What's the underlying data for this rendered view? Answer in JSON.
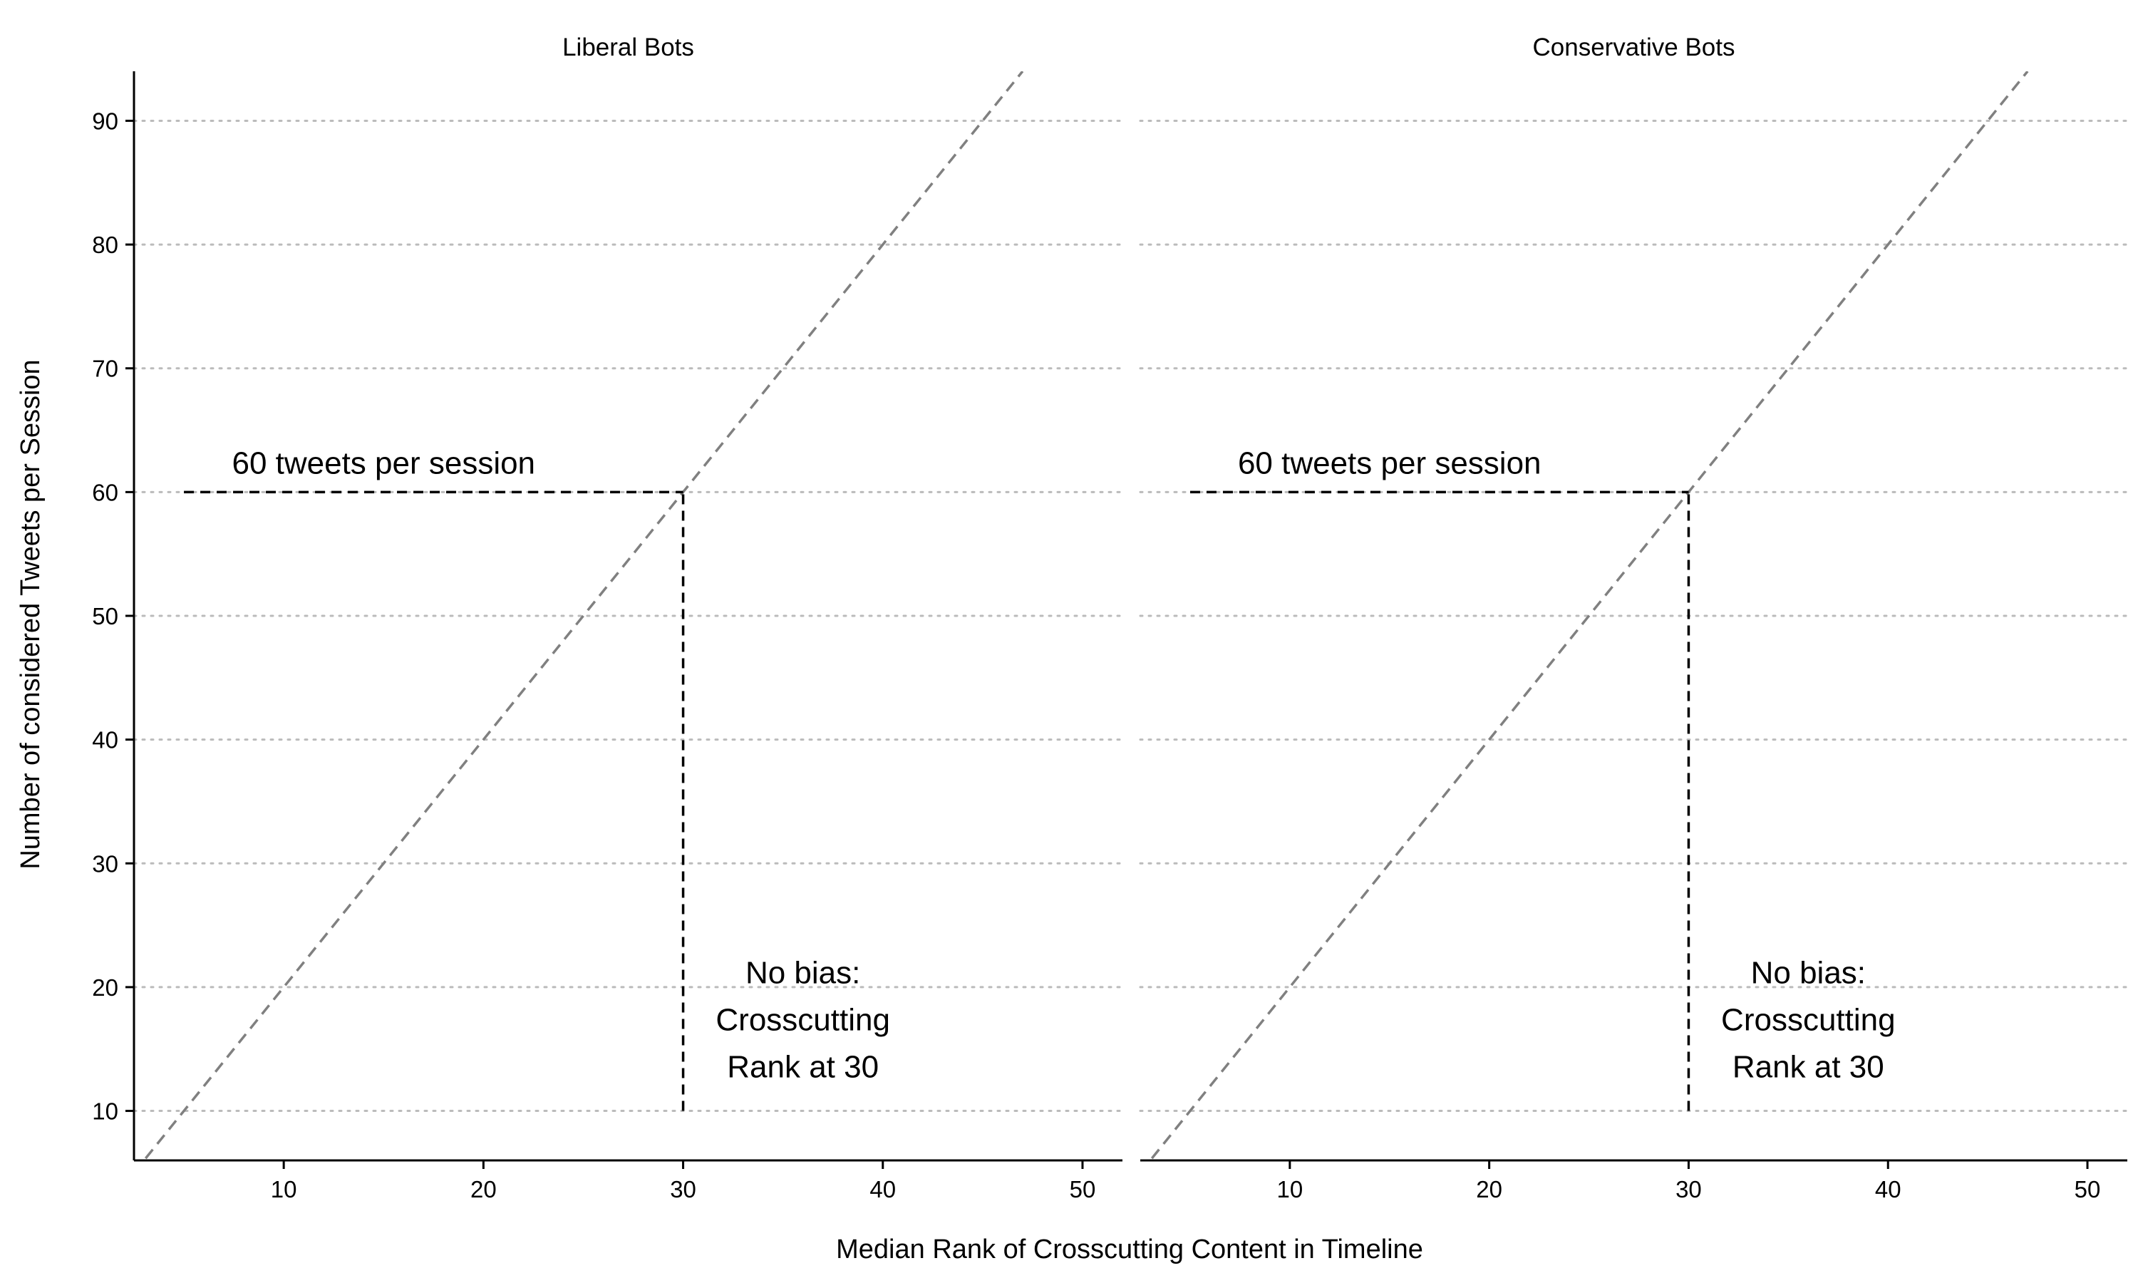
{
  "chart_data": {
    "type": "line",
    "facet_layout": "1 row x 2 columns, shared axes",
    "xlabel": "Median Rank of Crosscutting Content in Timeline",
    "ylabel": "Number of considered Tweets per Session",
    "xlim": [
      2.5,
      52
    ],
    "ylim": [
      6,
      94
    ],
    "xticks": [
      10,
      20,
      30,
      40,
      50
    ],
    "yticks": [
      10,
      20,
      30,
      40,
      50,
      60,
      70,
      80,
      90
    ],
    "grid": "horizontal dotted gridlines at y ticks",
    "legend": "none",
    "colors": {
      "reference_line": "#808080",
      "guide_lines": "#000000",
      "grid": "#bbbbbb",
      "axis": "#000000"
    },
    "panels": [
      {
        "title": "Liberal Bots",
        "series": [
          {
            "style": "dashed-gray",
            "x": [
              2.5,
              47
            ],
            "y": [
              5,
              94
            ]
          }
        ],
        "guides": {
          "horizontal": {
            "y": 60,
            "x_from": 5,
            "x_to": 30,
            "label": "60 tweets per session",
            "label_x": 15,
            "label_y": 61.5
          },
          "vertical": {
            "x": 30,
            "y_from": 10,
            "y_to": 60
          }
        },
        "annotation": {
          "lines": [
            "No bias:",
            "Crosscutting",
            "Rank at 30"
          ],
          "x": 36,
          "y": 16.5
        }
      },
      {
        "title": "Conservative Bots",
        "series": [
          {
            "style": "dashed-gray",
            "x": [
              2.5,
              47
            ],
            "y": [
              5,
              94
            ]
          }
        ],
        "guides": {
          "horizontal": {
            "y": 60,
            "x_from": 5,
            "x_to": 30,
            "label": "60 tweets per session",
            "label_x": 15,
            "label_y": 61.5
          },
          "vertical": {
            "x": 30,
            "y_from": 10,
            "y_to": 60
          }
        },
        "annotation": {
          "lines": [
            "No bias:",
            "Crosscutting",
            "Rank at 30"
          ],
          "x": 36,
          "y": 16.5
        }
      }
    ]
  }
}
